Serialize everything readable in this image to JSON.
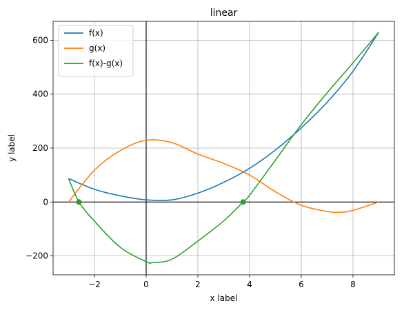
{
  "chart_data": {
    "type": "line",
    "title": "linear",
    "xlabel": "x label",
    "ylabel": "y label",
    "xlim": [
      -3.6,
      9.6
    ],
    "ylim": [
      -270,
      670
    ],
    "x_ticks": [
      -2,
      0,
      2,
      4,
      6,
      8
    ],
    "y_ticks": [
      -200,
      0,
      200,
      400,
      600
    ],
    "x_tick_labels": [
      "−2",
      "0",
      "2",
      "4",
      "6",
      "8"
    ],
    "y_tick_labels": [
      "−200",
      "0",
      "200",
      "400",
      "600"
    ],
    "grid": true,
    "legend_position": "top-left",
    "reference_lines": {
      "x": 0,
      "y": 0
    },
    "series": [
      {
        "name": "f(x)",
        "color": "#1f77b4",
        "x": [
          -3,
          -2,
          -1,
          0,
          1,
          2,
          3,
          4,
          5,
          6,
          7,
          8,
          9
        ],
        "y": [
          87,
          47,
          23,
          8,
          8,
          33,
          73,
          125,
          193,
          275,
          370,
          485,
          630
        ]
      },
      {
        "name": "g(x)",
        "color": "#ff7f0e",
        "x": [
          -3,
          -2,
          -1,
          0,
          1,
          2,
          3,
          4,
          5,
          6,
          7,
          7.5,
          8,
          9
        ],
        "y": [
          0,
          118,
          191,
          229,
          220,
          178,
          143,
          100,
          38,
          -12,
          -35,
          -38,
          -31,
          0
        ]
      },
      {
        "name": "f(x)-g(x)",
        "color": "#2ca02c",
        "x": [
          -3,
          -2.6,
          -2,
          -1,
          0,
          0.25,
          1,
          2,
          3,
          3.75,
          4,
          5,
          6,
          7,
          8,
          9
        ],
        "y": [
          87,
          0,
          -71,
          -168,
          -221,
          -225,
          -212,
          -145,
          -70,
          0,
          25,
          155,
          287,
          405,
          516,
          630
        ]
      }
    ],
    "markers": [
      {
        "x": -2.6,
        "y": 0,
        "color": "#2ca02c"
      },
      {
        "x": 3.75,
        "y": 0,
        "color": "#2ca02c"
      }
    ]
  }
}
